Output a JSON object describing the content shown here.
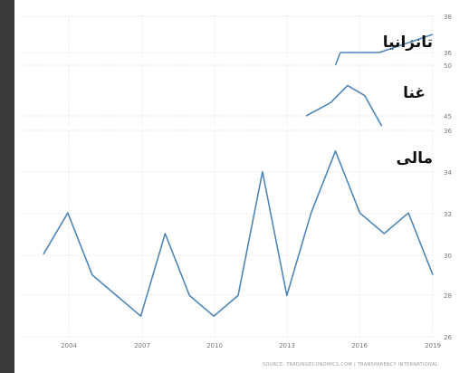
{
  "chart_data": [
    {
      "type": "line",
      "title": "تانزانیا",
      "y_ticks": [
        "38",
        "36"
      ],
      "ylim": [
        35,
        38
      ],
      "xlim": [
        2003,
        2019.5
      ],
      "grid": true,
      "series": [
        {
          "name": "تانزانیا",
          "color": "#4f86b8",
          "x": [
            2015.0,
            2015.2,
            2016.8,
            2019.0
          ],
          "values": [
            35.3,
            36.0,
            36.0,
            37.0
          ]
        }
      ]
    },
    {
      "type": "line",
      "title": "غنا",
      "y_ticks": [
        "50",
        "45"
      ],
      "ylim": [
        44,
        50
      ],
      "xlim": [
        2003,
        2019.5
      ],
      "grid": true,
      "series": [
        {
          "name": "غنا",
          "color": "#4f86b8",
          "x": [
            2013.8,
            2014.8,
            2015.5,
            2016.2,
            2016.9
          ],
          "values": [
            45,
            46.3,
            48,
            47,
            44
          ]
        }
      ]
    },
    {
      "type": "line",
      "title": "مالی",
      "x_ticks": [
        "2004",
        "2007",
        "2010",
        "2013",
        "2016",
        "2019"
      ],
      "y_ticks": [
        "36",
        "34",
        "32",
        "30",
        "28",
        "26"
      ],
      "ylim": [
        26,
        36
      ],
      "xlim": [
        2003,
        2019.5
      ],
      "grid": true,
      "series": [
        {
          "name": "مالی",
          "color": "#4f86b8",
          "x": [
            2003,
            2004,
            2005,
            2006,
            2007,
            2008,
            2009,
            2010,
            2011,
            2012,
            2013,
            2014,
            2015,
            2016,
            2017,
            2018,
            2019
          ],
          "values": [
            30,
            32,
            29,
            28,
            27,
            31,
            28,
            27,
            28,
            34,
            28,
            32,
            35,
            32,
            31,
            32,
            29
          ]
        }
      ]
    }
  ],
  "source": "SOURCE: TRADINGECONOMICS.COM | TRANSPARENCY INTERNATIONAL",
  "colors": {
    "line": "#4f86b8",
    "grid": "#d9d9d9",
    "panel_bg": "#ffffff",
    "page_bg": "#2b2b2b"
  }
}
